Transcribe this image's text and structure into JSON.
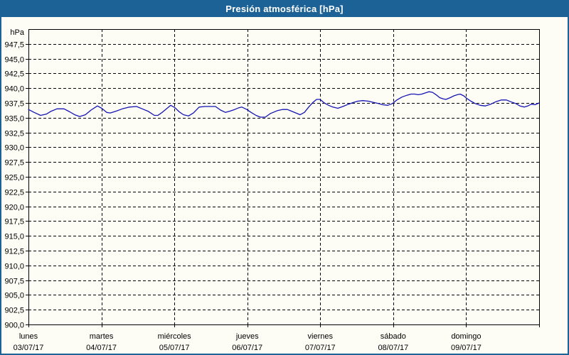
{
  "window": {
    "title": "Presión atmosférica [hPa]"
  },
  "colors": {
    "frame_blue": "#1d6296",
    "background": "#fdfdf6",
    "grid": "#000000",
    "axis_text": "#000000",
    "title_text": "#ffffff",
    "series_line": "#1414b4"
  },
  "chart_data": {
    "type": "line",
    "title": "Presión atmosférica [hPa]",
    "y_unit_label": "hPa",
    "y_min": 900.0,
    "y_max": 950.0,
    "y_tick_step": 2.5,
    "grid_style": "dashed",
    "y_tick_labels": [
      "947,5",
      "945,0",
      "942,5",
      "940,0",
      "937,5",
      "935,0",
      "932,5",
      "930,0",
      "927,5",
      "925,0",
      "922,5",
      "920,0",
      "917,5",
      "915,0",
      "912,5",
      "910,0",
      "907,5",
      "905,0",
      "902,5",
      "900,0"
    ],
    "x_axis_days": [
      {
        "weekday": "lunes",
        "date": "03/07/17"
      },
      {
        "weekday": "martes",
        "date": "04/07/17"
      },
      {
        "weekday": "miércoles",
        "date": "05/07/17"
      },
      {
        "weekday": "jueves",
        "date": "06/07/17"
      },
      {
        "weekday": "viernes",
        "date": "07/07/17"
      },
      {
        "weekday": "sábado",
        "date": "08/07/17"
      },
      {
        "weekday": "domingo",
        "date": "09/07/17"
      }
    ],
    "series": [
      {
        "name": "presión atmosférica",
        "color": "#1414b4",
        "points_day_value": [
          [
            0.0,
            936.4
          ],
          [
            0.078,
            935.9
          ],
          [
            0.166,
            935.4
          ],
          [
            0.244,
            935.6
          ],
          [
            0.312,
            936.1
          ],
          [
            0.39,
            936.5
          ],
          [
            0.487,
            936.5
          ],
          [
            0.565,
            936.0
          ],
          [
            0.634,
            935.5
          ],
          [
            0.702,
            935.2
          ],
          [
            0.78,
            935.5
          ],
          [
            0.858,
            936.3
          ],
          [
            0.946,
            937.0
          ],
          [
            1.004,
            936.6
          ],
          [
            1.072,
            935.9
          ],
          [
            1.121,
            935.8
          ],
          [
            1.199,
            936.1
          ],
          [
            1.287,
            936.5
          ],
          [
            1.384,
            936.8
          ],
          [
            1.482,
            936.9
          ],
          [
            1.56,
            936.5
          ],
          [
            1.638,
            936.1
          ],
          [
            1.726,
            935.4
          ],
          [
            1.774,
            935.4
          ],
          [
            1.833,
            935.9
          ],
          [
            1.901,
            936.6
          ],
          [
            1.95,
            937.1
          ],
          [
            2.008,
            936.7
          ],
          [
            2.067,
            936.0
          ],
          [
            2.125,
            935.5
          ],
          [
            2.194,
            935.3
          ],
          [
            2.262,
            935.8
          ],
          [
            2.34,
            936.8
          ],
          [
            2.418,
            936.9
          ],
          [
            2.496,
            936.9
          ],
          [
            2.564,
            936.9
          ],
          [
            2.632,
            936.3
          ],
          [
            2.701,
            935.9
          ],
          [
            2.759,
            936.1
          ],
          [
            2.827,
            936.4
          ],
          [
            2.886,
            936.7
          ],
          [
            2.925,
            936.8
          ],
          [
            2.993,
            936.4
          ],
          [
            3.052,
            935.9
          ],
          [
            3.12,
            935.4
          ],
          [
            3.178,
            935.1
          ],
          [
            3.247,
            935.1
          ],
          [
            3.315,
            935.7
          ],
          [
            3.412,
            936.2
          ],
          [
            3.481,
            936.4
          ],
          [
            3.549,
            936.4
          ],
          [
            3.607,
            936.1
          ],
          [
            3.666,
            935.8
          ],
          [
            3.724,
            935.5
          ],
          [
            3.783,
            935.9
          ],
          [
            3.841,
            936.8
          ],
          [
            3.9,
            937.6
          ],
          [
            3.949,
            938.1
          ],
          [
            3.997,
            938.1
          ],
          [
            4.056,
            937.5
          ],
          [
            4.114,
            937.1
          ],
          [
            4.173,
            936.8
          ],
          [
            4.241,
            936.6
          ],
          [
            4.309,
            936.9
          ],
          [
            4.387,
            937.3
          ],
          [
            4.456,
            937.6
          ],
          [
            4.514,
            937.8
          ],
          [
            4.582,
            937.9
          ],
          [
            4.66,
            937.8
          ],
          [
            4.729,
            937.6
          ],
          [
            4.797,
            937.4
          ],
          [
            4.855,
            937.2
          ],
          [
            4.924,
            937.1
          ],
          [
            4.992,
            937.4
          ],
          [
            5.05,
            938.0
          ],
          [
            5.119,
            938.5
          ],
          [
            5.187,
            938.8
          ],
          [
            5.245,
            939.0
          ],
          [
            5.294,
            939.0
          ],
          [
            5.343,
            938.9
          ],
          [
            5.392,
            939.0
          ],
          [
            5.44,
            939.2
          ],
          [
            5.489,
            939.4
          ],
          [
            5.538,
            939.3
          ],
          [
            5.587,
            938.9
          ],
          [
            5.636,
            938.4
          ],
          [
            5.684,
            938.2
          ],
          [
            5.723,
            938.1
          ],
          [
            5.782,
            938.4
          ],
          [
            5.831,
            938.7
          ],
          [
            5.879,
            938.9
          ],
          [
            5.918,
            939.0
          ],
          [
            5.967,
            938.7
          ],
          [
            6.016,
            938.2
          ],
          [
            6.065,
            937.8
          ],
          [
            6.123,
            937.4
          ],
          [
            6.191,
            937.1
          ],
          [
            6.26,
            937.0
          ],
          [
            6.338,
            937.3
          ],
          [
            6.406,
            937.7
          ],
          [
            6.484,
            938.0
          ],
          [
            6.552,
            938.0
          ],
          [
            6.611,
            937.7
          ],
          [
            6.679,
            937.4
          ],
          [
            6.737,
            937.0
          ],
          [
            6.796,
            936.8
          ],
          [
            6.845,
            937.0
          ],
          [
            6.894,
            937.3
          ],
          [
            6.942,
            937.2
          ],
          [
            7.0,
            937.5
          ]
        ]
      }
    ]
  }
}
